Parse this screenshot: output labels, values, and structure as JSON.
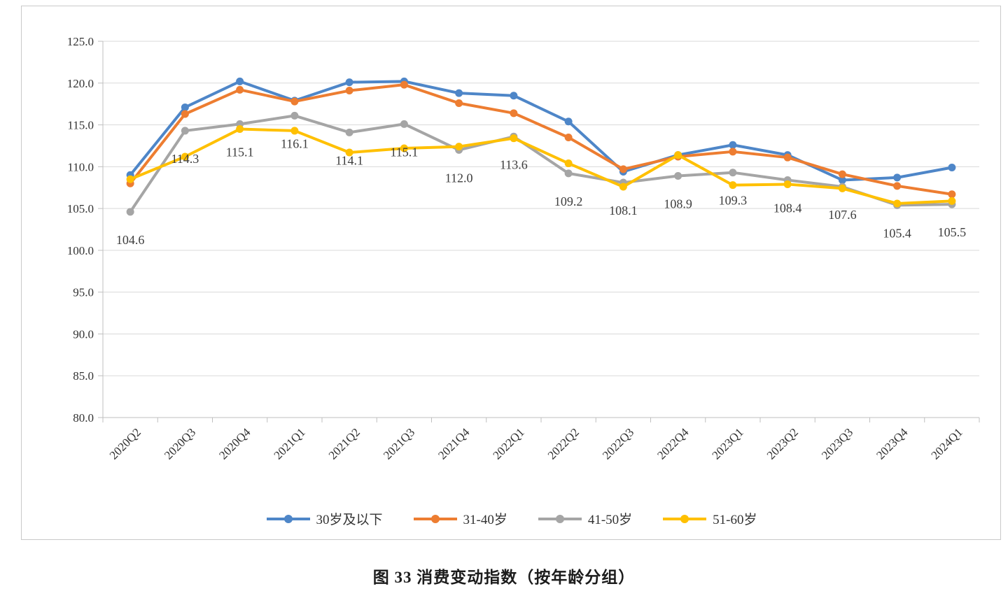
{
  "figure": {
    "caption": "图 33 消费变动指数（按年龄分组）"
  },
  "chart_data": {
    "type": "line",
    "title": "",
    "xlabel": "",
    "ylabel": "",
    "ylim": [
      80,
      125
    ],
    "ytick_step": 5,
    "ytick_labels": [
      "80.0",
      "85.0",
      "90.0",
      "95.0",
      "100.0",
      "105.0",
      "110.0",
      "115.0",
      "120.0",
      "125.0"
    ],
    "grid": true,
    "legend_position": "bottom",
    "colors": {
      "grid": "#d9d9d9",
      "axis": "#bfbfbf",
      "label_text": "#3d3d3d"
    },
    "categories": [
      "2020Q2",
      "2020Q3",
      "2020Q4",
      "2021Q1",
      "2021Q2",
      "2021Q3",
      "2021Q4",
      "2022Q1",
      "2022Q2",
      "2022Q3",
      "2022Q4",
      "2023Q1",
      "2023Q2",
      "2023Q3",
      "2023Q4",
      "2024Q1"
    ],
    "series": [
      {
        "name": "30岁及以下",
        "color": "#4e86c8",
        "values": [
          109.0,
          117.1,
          120.2,
          117.9,
          120.1,
          120.2,
          118.8,
          118.5,
          115.4,
          109.4,
          111.4,
          112.6,
          111.4,
          108.4,
          108.7,
          109.9
        ]
      },
      {
        "name": "31-40岁",
        "color": "#ed7d31",
        "values": [
          108.0,
          116.3,
          119.2,
          117.8,
          119.1,
          119.8,
          117.6,
          116.4,
          113.5,
          109.7,
          111.2,
          111.8,
          111.1,
          109.1,
          107.7,
          106.7
        ]
      },
      {
        "name": "41-50岁",
        "color": "#a5a5a5",
        "values": [
          104.6,
          114.3,
          115.1,
          116.1,
          114.1,
          115.1,
          112.0,
          113.6,
          109.2,
          108.1,
          108.9,
          109.3,
          108.4,
          107.6,
          105.4,
          105.5
        ],
        "show_labels": true,
        "labels": [
          "104.6",
          "114.3",
          "115.1",
          "116.1",
          "114.1",
          "115.1",
          "112.0",
          "113.6",
          "109.2",
          "108.1",
          "108.9",
          "109.3",
          "108.4",
          "107.6",
          "105.4",
          "105.5"
        ]
      },
      {
        "name": "51-60岁",
        "color": "#ffc000",
        "values": [
          108.5,
          111.2,
          114.5,
          114.3,
          111.7,
          112.2,
          112.4,
          113.4,
          110.4,
          107.6,
          111.4,
          107.8,
          107.9,
          107.4,
          105.6,
          105.9
        ]
      }
    ]
  }
}
